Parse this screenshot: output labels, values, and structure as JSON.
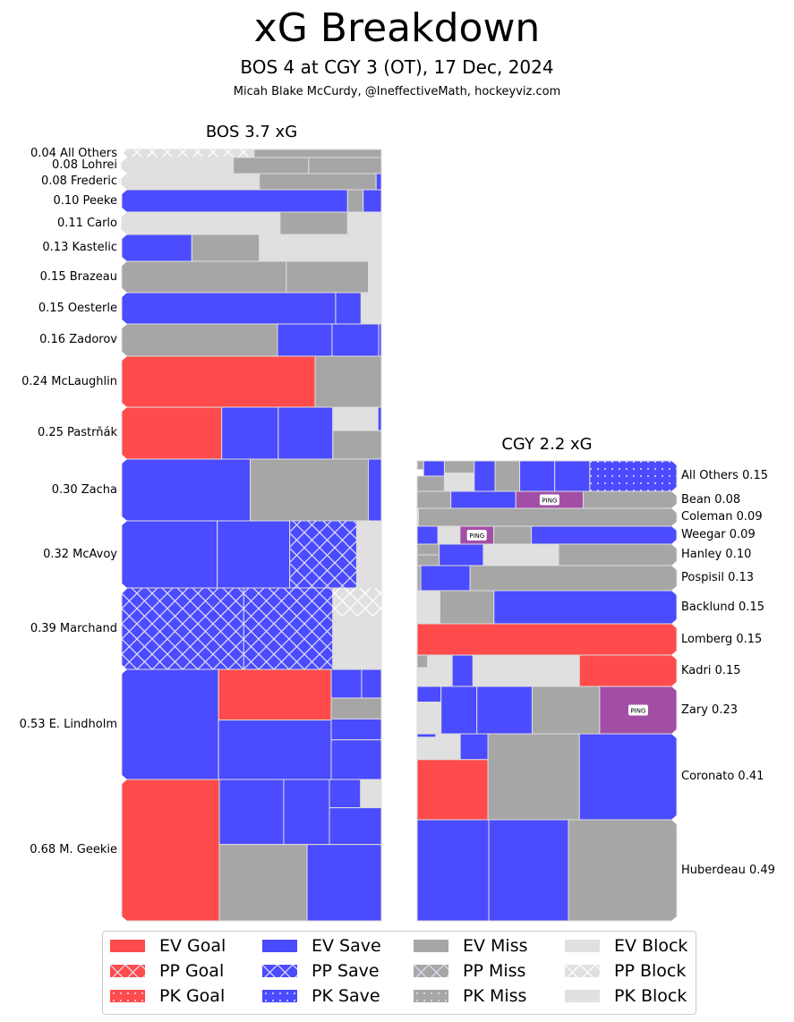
{
  "header": {
    "title": "xG Breakdown",
    "subtitle": "BOS 4 at CGY 3 (OT), 17 Dec, 2024",
    "credit": "Micah Blake McCurdy, @IneffectiveMath, hockeyviz.com"
  },
  "colors": {
    "goal": "#ff4b4b",
    "save": "#4b4bff",
    "miss": "#a6a6a6",
    "block": "#e0e0e0",
    "penalty": "#a34ea6",
    "edge": "#dddddd"
  },
  "chart_data": {
    "type": "treemap",
    "title": "xG Breakdown",
    "teams": [
      {
        "name": "BOS 3.7 xG",
        "team": "BOS",
        "total_xg": 3.7,
        "label_side": "left",
        "players": [
          {
            "label": "0.04 All Others",
            "xg": 0.04
          },
          {
            "label": "0.08 Lohrei",
            "xg": 0.08
          },
          {
            "label": "0.08 Frederic",
            "xg": 0.08
          },
          {
            "label": "0.10 Peeke",
            "xg": 0.1
          },
          {
            "label": "0.11 Carlo",
            "xg": 0.11
          },
          {
            "label": "0.13 Kastelic",
            "xg": 0.13
          },
          {
            "label": "0.15 Brazeau",
            "xg": 0.15
          },
          {
            "label": "0.15 Oesterle",
            "xg": 0.15
          },
          {
            "label": "0.16 Zadorov",
            "xg": 0.16
          },
          {
            "label": "0.24 McLaughlin",
            "xg": 0.24
          },
          {
            "label": "0.25 Pastrňák",
            "xg": 0.25
          },
          {
            "label": "0.30 Zacha",
            "xg": 0.3
          },
          {
            "label": "0.32 McAvoy",
            "xg": 0.32
          },
          {
            "label": "0.39 Marchand",
            "xg": 0.39
          },
          {
            "label": "0.53 E. Lindholm",
            "xg": 0.53
          },
          {
            "label": "0.68 M. Geekie",
            "xg": 0.68
          }
        ]
      },
      {
        "name": "CGY 2.2 xG",
        "team": "CGY",
        "total_xg": 2.2,
        "label_side": "right",
        "players": [
          {
            "label": "All Others 0.15",
            "xg": 0.15
          },
          {
            "label": "Bean 0.08",
            "xg": 0.08
          },
          {
            "label": "Coleman 0.09",
            "xg": 0.09
          },
          {
            "label": "Weegar 0.09",
            "xg": 0.09
          },
          {
            "label": "Hanley 0.10",
            "xg": 0.1
          },
          {
            "label": "Pospisil 0.13",
            "xg": 0.13
          },
          {
            "label": "Backlund 0.15",
            "xg": 0.15
          },
          {
            "label": "Lomberg 0.15",
            "xg": 0.15
          },
          {
            "label": "Kadri 0.15",
            "xg": 0.15
          },
          {
            "label": "Zary 0.23",
            "xg": 0.23
          },
          {
            "label": "Coronato 0.41",
            "xg": 0.41
          },
          {
            "label": "Huberdeau 0.49",
            "xg": 0.49
          }
        ]
      }
    ],
    "penalty_label": "PING",
    "legend": [
      {
        "label": "EV Goal",
        "type": "goal",
        "state": "EV"
      },
      {
        "label": "PP Goal",
        "type": "goal",
        "state": "PP"
      },
      {
        "label": "PK Goal",
        "type": "goal",
        "state": "PK"
      },
      {
        "label": "EV Save",
        "type": "save",
        "state": "EV"
      },
      {
        "label": "PP Save",
        "type": "save",
        "state": "PP"
      },
      {
        "label": "PK Save",
        "type": "save",
        "state": "PK"
      },
      {
        "label": "EV Miss",
        "type": "miss",
        "state": "EV"
      },
      {
        "label": "PP Miss",
        "type": "miss",
        "state": "PP"
      },
      {
        "label": "PK Miss",
        "type": "miss",
        "state": "PK"
      },
      {
        "label": "EV Block",
        "type": "block",
        "state": "EV"
      },
      {
        "label": "PP Block",
        "type": "block",
        "state": "PP"
      },
      {
        "label": "PK Block",
        "type": "block",
        "state": "PK"
      }
    ]
  }
}
